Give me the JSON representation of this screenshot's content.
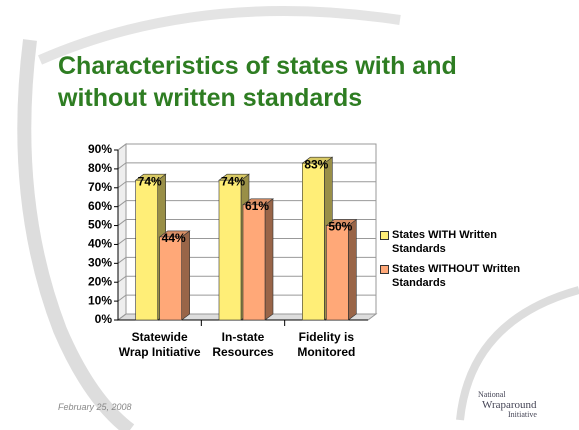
{
  "chart_data": {
    "type": "bar",
    "title": "Characteristics of states with and without written standards",
    "categories": [
      "Statewide Wrap Initiative",
      "In-state Resources",
      "Fidelity is Monitored"
    ],
    "series": [
      {
        "name": "States WITH Written Standards",
        "color": "#ffee77",
        "values": [
          74,
          74,
          83
        ],
        "value_labels": [
          "74%",
          "74%",
          "83%"
        ]
      },
      {
        "name": "States WITHOUT Written Standards",
        "color": "#ffa878",
        "values": [
          44,
          61,
          50
        ],
        "value_labels": [
          "44%",
          "61%",
          "50%"
        ]
      }
    ],
    "ylim": [
      0,
      90
    ],
    "yticks": [
      {
        "value": 0,
        "label": "0%"
      },
      {
        "value": 10,
        "label": "10%"
      },
      {
        "value": 20,
        "label": "20%"
      },
      {
        "value": 30,
        "label": "30%"
      },
      {
        "value": 40,
        "label": "40%"
      },
      {
        "value": 50,
        "label": "50%"
      },
      {
        "value": 60,
        "label": "60%"
      },
      {
        "value": 70,
        "label": "70%"
      },
      {
        "value": 80,
        "label": "80%"
      },
      {
        "value": 90,
        "label": "90%"
      }
    ],
    "grid": true,
    "legend": "right"
  },
  "footer": {
    "date": "February 25, 2008",
    "logo": [
      "National",
      "Wraparound",
      "Initiative"
    ]
  }
}
